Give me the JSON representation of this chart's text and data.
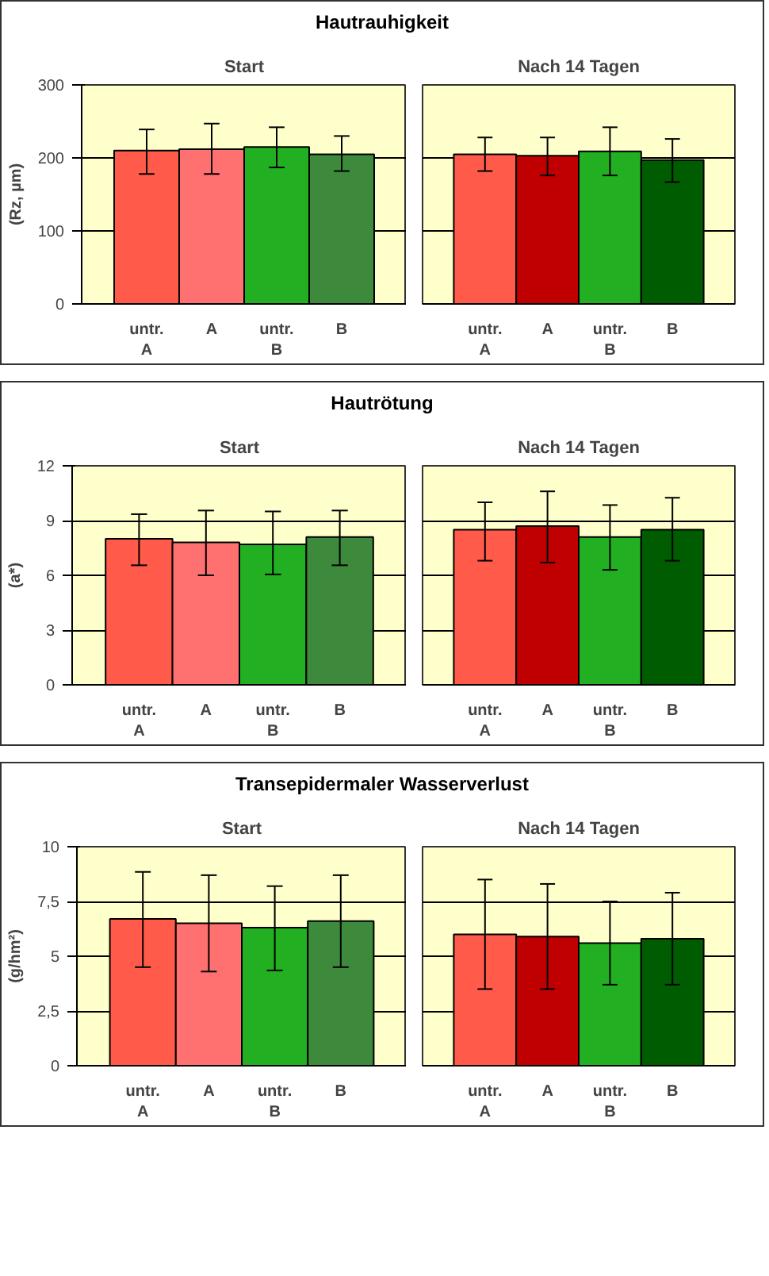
{
  "chart_data": [
    {
      "type": "bar",
      "title": "Hautrauhigkeit",
      "subtitle": "Start",
      "ylabel": "(Rz, µm)",
      "categories": [
        "untr.\nA",
        "A",
        "untr.\nB",
        "B"
      ],
      "values": [
        210,
        212,
        215,
        205
      ],
      "errors": [
        [
          178,
          239
        ],
        [
          178,
          247
        ],
        [
          187,
          242
        ],
        [
          182,
          230
        ]
      ],
      "colors": [
        "#ff5a4a",
        "#ff7070",
        "#22b022",
        "#3d8a3d"
      ],
      "ylim": [
        0,
        300
      ],
      "yticks": [
        0,
        100,
        200,
        300
      ],
      "grid": "y"
    },
    {
      "type": "bar",
      "subtitle": "Nach 14 Tagen",
      "categories": [
        "untr.\nA",
        "A",
        "untr.\nB",
        "B"
      ],
      "values": [
        205,
        203,
        209,
        197
      ],
      "errors": [
        [
          182,
          228
        ],
        [
          176,
          228
        ],
        [
          176,
          242
        ],
        [
          167,
          226
        ]
      ],
      "colors": [
        "#ff5a4a",
        "#c00000",
        "#22b022",
        "#005c00"
      ],
      "ylim": [
        0,
        300
      ],
      "yticks": [
        0,
        100,
        200,
        300
      ],
      "grid": "y",
      "tick_labels": "x"
    },
    {
      "type": "bar",
      "title": "Hautrötung",
      "subtitle": "Start",
      "ylabel": "(a*)",
      "categories": [
        "untr.\nA",
        "A",
        "untr.\nB",
        "B"
      ],
      "values": [
        8.0,
        7.8,
        7.7,
        8.1
      ],
      "errors": [
        [
          6.55,
          9.35
        ],
        [
          6.0,
          9.55
        ],
        [
          6.05,
          9.5
        ],
        [
          6.55,
          9.55
        ]
      ],
      "colors": [
        "#ff5a4a",
        "#ff7070",
        "#22b022",
        "#3d8a3d"
      ],
      "ylim": [
        0,
        12
      ],
      "yticks": [
        0,
        3,
        6,
        9,
        12
      ],
      "grid": "y"
    },
    {
      "type": "bar",
      "subtitle": "Nach 14 Tagen",
      "categories": [
        "untr.\nA",
        "A",
        "untr.\nB",
        "B"
      ],
      "values": [
        8.5,
        8.7,
        8.1,
        8.5
      ],
      "errors": [
        [
          6.8,
          10.0
        ],
        [
          6.7,
          10.6
        ],
        [
          6.3,
          9.85
        ],
        [
          6.8,
          10.25
        ]
      ],
      "colors": [
        "#ff5a4a",
        "#c00000",
        "#22b022",
        "#005c00"
      ],
      "ylim": [
        0,
        12
      ],
      "yticks": [
        0,
        3,
        6,
        9,
        12
      ],
      "grid": "y",
      "tick_labels": "x"
    },
    {
      "type": "bar",
      "title": "Transepidermaler Wasserverlust",
      "subtitle": "Start",
      "ylabel": "(g/hm²)",
      "categories": [
        "untr.\nA",
        "A",
        "untr.\nB",
        "B"
      ],
      "values": [
        6.7,
        6.5,
        6.3,
        6.6
      ],
      "errors": [
        [
          4.5,
          8.85
        ],
        [
          4.3,
          8.7
        ],
        [
          4.35,
          8.2
        ],
        [
          4.5,
          8.7
        ]
      ],
      "colors": [
        "#ff5a4a",
        "#ff7070",
        "#22b022",
        "#3d8a3d"
      ],
      "ylim": [
        0,
        10
      ],
      "yticks": [
        0,
        {
          "value": 2.5,
          "label": "2,5"
        },
        5,
        {
          "value": 7.5,
          "label": "7,5"
        },
        10
      ],
      "grid": "y"
    },
    {
      "type": "bar",
      "subtitle": "Nach 14 Tagen",
      "categories": [
        "untr.\nA",
        "A",
        "untr.\nB",
        "B"
      ],
      "values": [
        6.0,
        5.9,
        5.6,
        5.8
      ],
      "errors": [
        [
          3.5,
          8.5
        ],
        [
          3.5,
          8.3
        ],
        [
          3.7,
          7.5
        ],
        [
          3.7,
          7.9
        ]
      ],
      "colors": [
        "#ff5a4a",
        "#c00000",
        "#22b022",
        "#005c00"
      ],
      "ylim": [
        0,
        10
      ],
      "yticks": [
        {
          "value": 0,
          "label": null
        },
        {
          "value": 2.5,
          "label": null
        },
        {
          "value": 5,
          "label": null
        },
        {
          "value": 7.5,
          "label": null
        },
        {
          "value": 10,
          "label": null
        }
      ],
      "grid": "y",
      "tick_labels": "x"
    }
  ]
}
